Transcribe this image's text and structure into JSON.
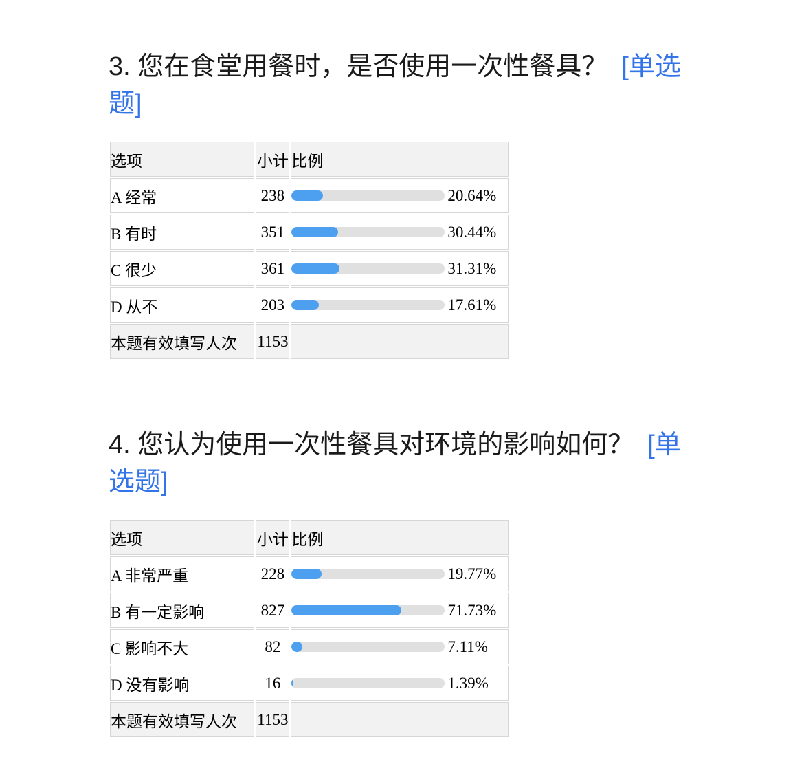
{
  "colors": {
    "accent_link_blue": "#3374e8",
    "bar_fill_blue": "#4da0ef",
    "bar_track_gray": "#e0e0e0",
    "header_row_bg": "#f2f2f2",
    "cell_border": "#d6d6d6"
  },
  "questions": [
    {
      "title": "3. 您在食堂用餐时，是否使用一次性餐具？",
      "tag": "[单选题]",
      "table": {
        "headers": [
          "选项",
          "小计",
          "比例"
        ],
        "rows": [
          {
            "option": "A 经常",
            "count": "238",
            "percent": "20.64%",
            "pct": 20.64
          },
          {
            "option": "B 有时",
            "count": "351",
            "percent": "30.44%",
            "pct": 30.44
          },
          {
            "option": "C 很少",
            "count": "361",
            "percent": "31.31%",
            "pct": 31.31
          },
          {
            "option": "D 从不",
            "count": "203",
            "percent": "17.61%",
            "pct": 17.61
          }
        ],
        "footer_label": "本题有效填写人次",
        "footer_count": "1153"
      }
    },
    {
      "title": "4. 您认为使用一次性餐具对环境的影响如何？",
      "tag": "[单选题]",
      "table": {
        "headers": [
          "选项",
          "小计",
          "比例"
        ],
        "rows": [
          {
            "option": "A 非常严重",
            "count": "228",
            "percent": "19.77%",
            "pct": 19.77
          },
          {
            "option": "B 有一定影响",
            "count": "827",
            "percent": "71.73%",
            "pct": 71.73
          },
          {
            "option": "C 影响不大",
            "count": "82",
            "percent": "7.11%",
            "pct": 7.11
          },
          {
            "option": "D 没有影响",
            "count": "16",
            "percent": "1.39%",
            "pct": 1.39
          }
        ],
        "footer_label": "本题有效填写人次",
        "footer_count": "1153"
      }
    }
  ],
  "chart_data": [
    {
      "type": "bar",
      "title": "3. 您在食堂用餐时，是否使用一次性餐具？ [单选题]",
      "categories": [
        "A 经常",
        "B 有时",
        "C 很少",
        "D 从不"
      ],
      "values": [
        238,
        351,
        361,
        203
      ],
      "series": [
        {
          "name": "小计",
          "values": [
            238,
            351,
            361,
            203
          ]
        },
        {
          "name": "比例(%)",
          "values": [
            20.64,
            30.44,
            31.31,
            17.61
          ]
        }
      ],
      "xlabel": "选项",
      "ylabel": "小计",
      "ylim": [
        0,
        1153
      ],
      "legend_position": "none",
      "grid": false,
      "valid_responses": 1153
    },
    {
      "type": "bar",
      "title": "4. 您认为使用一次性餐具对环境的影响如何？ [单选题]",
      "categories": [
        "A 非常严重",
        "B 有一定影响",
        "C 影响不大",
        "D 没有影响"
      ],
      "values": [
        228,
        827,
        82,
        16
      ],
      "series": [
        {
          "name": "小计",
          "values": [
            228,
            827,
            82,
            16
          ]
        },
        {
          "name": "比例(%)",
          "values": [
            19.77,
            71.73,
            7.11,
            1.39
          ]
        }
      ],
      "xlabel": "选项",
      "ylabel": "小计",
      "ylim": [
        0,
        1153
      ],
      "legend_position": "none",
      "grid": false,
      "valid_responses": 1153
    }
  ]
}
